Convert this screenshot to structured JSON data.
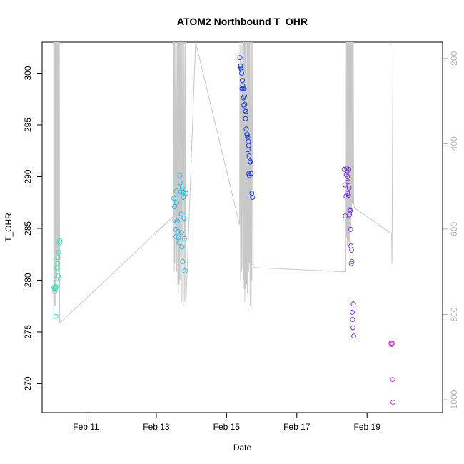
{
  "chart_data": {
    "type": "scatter",
    "title": "ATOM2 Northbound T_OHR",
    "xlabel": "Date",
    "ylabel": "T_OHR",
    "x_ticks": [
      {
        "label": "Feb 11",
        "day": 11
      },
      {
        "label": "Feb 13",
        "day": 13
      },
      {
        "label": "Feb 15",
        "day": 15
      },
      {
        "label": "Feb 17",
        "day": 17
      },
      {
        "label": "Feb 19",
        "day": 19
      }
    ],
    "xlim_days": [
      9.75,
      21.15
    ],
    "ylim": [
      267.2,
      303.0
    ],
    "y_ticks": [
      270,
      275,
      280,
      285,
      290,
      295,
      300
    ],
    "right_axis": {
      "reversed": true,
      "range": [
        162,
        1030
      ],
      "ticks": [
        200,
        400,
        600,
        800,
        1000
      ],
      "color": "#b4b4b4"
    },
    "grid": false,
    "groups": [
      {
        "color": "#33e6b0",
        "points": [
          [
            10.09,
            279.3
          ],
          [
            10.1,
            279.2
          ],
          [
            10.11,
            278.9
          ],
          [
            10.12,
            279.3
          ],
          [
            10.13,
            279.2
          ],
          [
            10.14,
            279.4
          ],
          [
            10.14,
            276.5
          ],
          [
            10.15,
            280.1
          ],
          [
            10.17,
            281.2
          ],
          [
            10.19,
            281.6
          ],
          [
            10.2,
            282.2
          ],
          [
            10.21,
            280.4
          ],
          [
            10.22,
            282.7
          ],
          [
            10.24,
            283.6
          ],
          [
            10.25,
            283.8
          ]
        ]
      },
      {
        "color": "#2cbce6",
        "points": [
          [
            13.5,
            287.9
          ],
          [
            13.52,
            287.1
          ],
          [
            13.53,
            285.8
          ],
          [
            13.55,
            284.9
          ],
          [
            13.56,
            284.2
          ],
          [
            13.57,
            288.6
          ],
          [
            13.58,
            287.5
          ],
          [
            13.6,
            285.7
          ],
          [
            13.62,
            284.7
          ],
          [
            13.63,
            284.1
          ],
          [
            13.65,
            283.6
          ],
          [
            13.67,
            290.1
          ],
          [
            13.68,
            289.4
          ],
          [
            13.7,
            288.5
          ],
          [
            13.71,
            286.4
          ],
          [
            13.72,
            284.6
          ],
          [
            13.73,
            283.2
          ],
          [
            13.74,
            288.9
          ],
          [
            13.75,
            281.8
          ],
          [
            13.77,
            288.0
          ],
          [
            13.78,
            288.5
          ],
          [
            13.79,
            286.0
          ],
          [
            13.8,
            284.0
          ],
          [
            13.82,
            280.9
          ],
          [
            13.84,
            288.4
          ]
        ]
      },
      {
        "color": "#2240e6",
        "points": [
          [
            15.38,
            301.5
          ],
          [
            15.4,
            300.7
          ],
          [
            15.41,
            300.5
          ],
          [
            15.42,
            300.4
          ],
          [
            15.43,
            300.0
          ],
          [
            15.44,
            298.5
          ],
          [
            15.45,
            299.3
          ],
          [
            15.46,
            298.8
          ],
          [
            15.47,
            298.5
          ],
          [
            15.48,
            297.6
          ],
          [
            15.48,
            296.9
          ],
          [
            15.5,
            298.5
          ],
          [
            15.51,
            297.8
          ],
          [
            15.52,
            297.0
          ],
          [
            15.53,
            296.4
          ],
          [
            15.54,
            295.6
          ],
          [
            15.55,
            296.3
          ],
          [
            15.56,
            294.6
          ],
          [
            15.58,
            294.1
          ],
          [
            15.59,
            294.0
          ],
          [
            15.6,
            293.8
          ],
          [
            15.61,
            292.6
          ],
          [
            15.62,
            293.4
          ],
          [
            15.63,
            293.0
          ],
          [
            15.63,
            290.3
          ],
          [
            15.64,
            292.0
          ],
          [
            15.65,
            290.1
          ],
          [
            15.67,
            291.5
          ],
          [
            15.68,
            291.4
          ],
          [
            15.7,
            290.3
          ],
          [
            15.72,
            288.4
          ],
          [
            15.74,
            288.0
          ]
        ]
      },
      {
        "color": "#7a36e6",
        "points": [
          [
            18.35,
            290.7
          ],
          [
            18.37,
            289.2
          ],
          [
            18.38,
            286.2
          ],
          [
            18.4,
            288.1
          ],
          [
            18.41,
            290.2
          ],
          [
            18.42,
            290.8
          ],
          [
            18.43,
            290.5
          ],
          [
            18.44,
            290.0
          ],
          [
            18.45,
            288.4
          ],
          [
            18.46,
            289.5
          ],
          [
            18.47,
            288.2
          ],
          [
            18.48,
            290.7
          ],
          [
            18.49,
            288.9
          ],
          [
            18.5,
            286.3
          ],
          [
            18.51,
            286.8
          ],
          [
            18.52,
            286.7
          ],
          [
            18.53,
            284.9
          ],
          [
            18.54,
            283.3
          ],
          [
            18.55,
            281.6
          ],
          [
            18.56,
            282.9
          ],
          [
            18.57,
            281.8
          ],
          [
            18.58,
            276.9
          ],
          [
            18.59,
            276.2
          ],
          [
            18.6,
            275.4
          ],
          [
            18.61,
            277.7
          ],
          [
            18.62,
            274.6
          ]
        ]
      },
      {
        "color": "#d93ee6",
        "points": [
          [
            19.68,
            273.9
          ],
          [
            19.7,
            273.8
          ],
          [
            19.72,
            273.9
          ],
          [
            19.73,
            270.4
          ],
          [
            19.74,
            268.2
          ]
        ]
      }
    ],
    "gray_line": {
      "color": "#c8c8c8",
      "x_days": [
        10.08,
        10.08,
        10.09,
        10.1,
        10.1,
        10.11,
        10.11,
        10.12,
        10.13,
        10.14,
        10.14,
        10.15,
        10.16,
        10.17,
        10.18,
        10.19,
        10.2,
        10.21,
        10.22,
        10.23,
        10.24,
        10.25,
        10.26,
        13.49,
        13.5,
        13.51,
        13.52,
        13.53,
        13.55,
        13.56,
        13.57,
        13.58,
        13.6,
        13.61,
        13.62,
        13.63,
        13.64,
        13.65,
        13.66,
        13.67,
        13.68,
        13.7,
        13.72,
        13.73,
        13.75,
        13.77,
        13.79,
        13.81,
        13.82,
        13.84,
        14.12,
        15.37,
        15.38,
        15.4,
        15.41,
        15.43,
        15.44,
        15.46,
        15.47,
        15.48,
        15.49,
        15.5,
        15.51,
        15.52,
        15.53,
        15.54,
        15.55,
        15.57,
        15.58,
        15.59,
        15.6,
        15.61,
        15.62,
        15.63,
        15.64,
        15.65,
        15.66,
        15.67,
        15.69,
        15.7,
        15.71,
        15.72,
        15.74,
        15.76,
        18.37,
        18.38,
        18.39,
        18.4,
        18.41,
        18.42,
        18.43,
        18.44,
        18.45,
        18.46,
        18.47,
        18.48,
        18.49,
        18.5,
        18.51,
        18.52,
        18.53,
        18.54,
        18.55,
        18.56,
        18.57,
        18.58,
        18.59,
        18.6,
        18.61,
        18.62,
        18.64,
        19.68,
        19.7,
        19.71,
        19.74,
        19.75
      ],
      "y_right": [
        162,
        800,
        162,
        780,
        162,
        760,
        162,
        780,
        162,
        740,
        162,
        700,
        162,
        720,
        162,
        660,
        162,
        700,
        162,
        780,
        162,
        820,
        820,
        570,
        162,
        700,
        162,
        680,
        162,
        730,
        162,
        700,
        162,
        730,
        162,
        750,
        162,
        730,
        162,
        720,
        162,
        730,
        162,
        770,
        162,
        780,
        162,
        770,
        162,
        780,
        162,
        590,
        162,
        720,
        162,
        700,
        162,
        690,
        162,
        720,
        162,
        740,
        162,
        770,
        162,
        740,
        162,
        730,
        162,
        750,
        162,
        680,
        162,
        700,
        162,
        680,
        162,
        780,
        162,
        790,
        162,
        720,
        162,
        690,
        700,
        650,
        162,
        650,
        162,
        620,
        162,
        640,
        162,
        640,
        162,
        630,
        162,
        640,
        162,
        650,
        162,
        600,
        162,
        570,
        162,
        540,
        162,
        530,
        162,
        540,
        550,
        610,
        610,
        680,
        162,
        162
      ]
    }
  }
}
